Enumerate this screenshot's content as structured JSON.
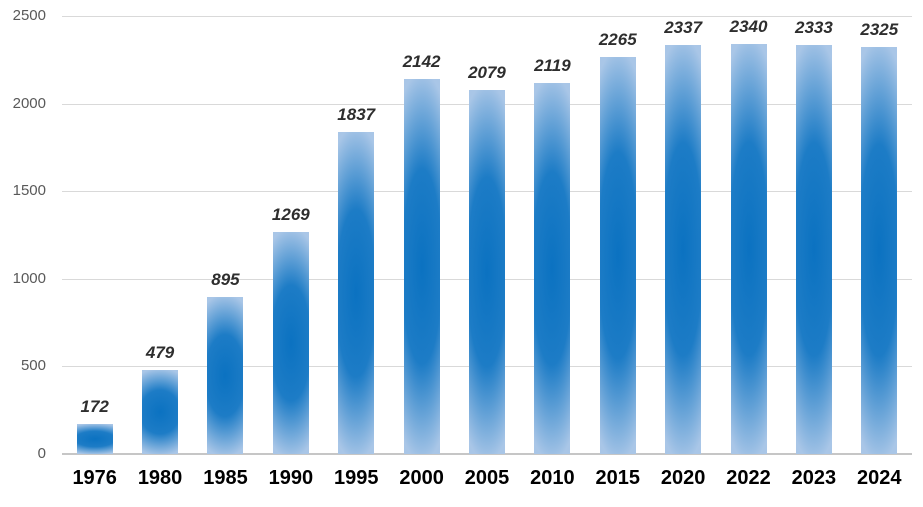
{
  "chart_data": {
    "type": "bar",
    "title": "",
    "xlabel": "",
    "ylabel": "",
    "categories": [
      "1976",
      "1980",
      "1985",
      "1990",
      "1995",
      "2000",
      "2005",
      "2010",
      "2015",
      "2020",
      "2022",
      "2023",
      "2024"
    ],
    "values": [
      172,
      479,
      895,
      1269,
      1837,
      2142,
      2079,
      2119,
      2265,
      2337,
      2340,
      2333,
      2325
    ],
    "value_labels_shown": true,
    "ylim": [
      0,
      2500
    ],
    "y_ticks": [
      0,
      500,
      1000,
      1500,
      2000,
      2500
    ],
    "grid": true,
    "legend": "none",
    "colors": {
      "bar_dark": "#0b72c1",
      "bar_mid": "#1d7cc6",
      "bar_light": "#a9c6e7",
      "gridline": "#d9d9d9",
      "axis_line": "#c6c6c6",
      "y_tick_text": "#595959",
      "x_tick_text": "#000000",
      "value_label_text": "#2e2e2e",
      "background": "#ffffff"
    }
  }
}
